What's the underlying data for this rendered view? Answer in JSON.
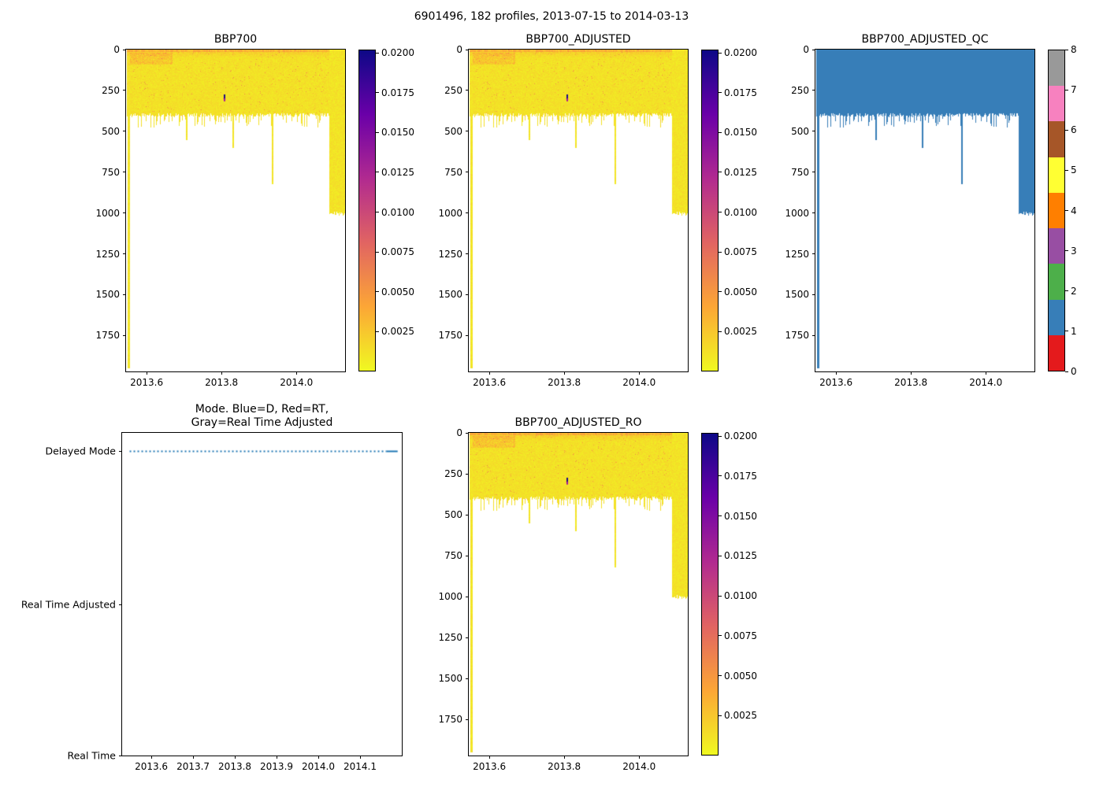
{
  "figure": {
    "suptitle": "6901496, 182 profiles, 2013-07-15 to 2014-03-13"
  },
  "palette": {
    "plasma_r_stops": [
      "#f0f921",
      "#fca636",
      "#e16462",
      "#b12a90",
      "#6a00a8",
      "#0d0887"
    ],
    "qc_category_colors": [
      "#e41a1c",
      "#377eb8",
      "#4daf4a",
      "#984ea3",
      "#ff7f00",
      "#ffff33",
      "#a65628",
      "#f781bf",
      "#999999"
    ],
    "qc_fill_color": "#377eb8",
    "mode_line_color": "#1f77b4"
  },
  "chart_data": [
    {
      "id": "bbp700",
      "type": "heatmap",
      "title": "BBP700",
      "x_tick_labels": [
        "2013.6",
        "2013.8",
        "2014.0"
      ],
      "x_tick_values": [
        2013.6,
        2013.8,
        2014.0
      ],
      "x_range": [
        2013.545,
        2014.13
      ],
      "y_tick_labels": [
        "0",
        "250",
        "500",
        "750",
        "1000",
        "1250",
        "1500",
        "1750"
      ],
      "y_tick_values": [
        0,
        250,
        500,
        750,
        1000,
        1250,
        1500,
        1750
      ],
      "y_range": [
        0,
        1970
      ],
      "y_axis": "pressure-depth, 0 at top (inverted)",
      "colormap": "plasma_r",
      "colorbar": {
        "vmin": 0,
        "vmax": 0.0202,
        "tick_values": [
          0.0025,
          0.005,
          0.0075,
          0.01,
          0.0125,
          0.015,
          0.0175,
          0.02
        ],
        "tick_labels": [
          "0.0025",
          "0.0050",
          "0.0075",
          "0.0100",
          "0.0125",
          "0.0150",
          "0.0175",
          "0.0200"
        ]
      },
      "data_summary": {
        "n_profiles": 182,
        "x_extent": [
          2013.548,
          2014.128
        ],
        "main_band": {
          "bottom_depth_min": 385,
          "bottom_depth_max": 475,
          "value_range": [
            0.0004,
            0.0022
          ]
        },
        "surface_layer": {
          "depth": 50,
          "max_value": 0.006
        },
        "deep_profiles": [
          {
            "x": 2013.55,
            "depth": 1950
          },
          {
            "x": 2013.705,
            "depth": 550
          },
          {
            "x": 2013.83,
            "depth": 600
          },
          {
            "x": 2013.935,
            "depth": 820
          }
        ],
        "deep_block": {
          "x_start": 2014.09,
          "x_end": 2014.128,
          "depth": 1000
        },
        "anomaly": {
          "x": 2013.805,
          "depth_top": 275,
          "depth_bottom": 315,
          "value": 0.018
        }
      }
    },
    {
      "id": "bbp700_adjusted",
      "type": "heatmap",
      "title": "BBP700_ADJUSTED",
      "x_tick_labels": [
        "2013.6",
        "2013.8",
        "2014.0"
      ],
      "x_tick_values": [
        2013.6,
        2013.8,
        2014.0
      ],
      "x_range": [
        2013.545,
        2014.13
      ],
      "y_tick_labels": [
        "0",
        "250",
        "500",
        "750",
        "1000",
        "1250",
        "1500",
        "1750"
      ],
      "y_tick_values": [
        0,
        250,
        500,
        750,
        1000,
        1250,
        1500,
        1750
      ],
      "y_range": [
        0,
        1970
      ],
      "y_axis": "pressure-depth, 0 at top (inverted)",
      "colormap": "plasma_r",
      "colorbar": {
        "vmin": 0,
        "vmax": 0.0202,
        "tick_values": [
          0.0025,
          0.005,
          0.0075,
          0.01,
          0.0125,
          0.015,
          0.0175,
          0.02
        ],
        "tick_labels": [
          "0.0025",
          "0.0050",
          "0.0075",
          "0.0100",
          "0.0125",
          "0.0150",
          "0.0175",
          "0.0200"
        ]
      },
      "data_summary": {
        "n_profiles": 182,
        "x_extent": [
          2013.548,
          2014.128
        ],
        "main_band": {
          "bottom_depth_min": 385,
          "bottom_depth_max": 475,
          "value_range": [
            0.0004,
            0.0022
          ]
        },
        "surface_layer": {
          "depth": 50,
          "max_value": 0.006
        },
        "deep_profiles": [
          {
            "x": 2013.55,
            "depth": 1950
          },
          {
            "x": 2013.705,
            "depth": 550
          },
          {
            "x": 2013.83,
            "depth": 600
          },
          {
            "x": 2013.935,
            "depth": 820
          }
        ],
        "deep_block": {
          "x_start": 2014.09,
          "x_end": 2014.128,
          "depth": 1000
        },
        "anomaly": {
          "x": 2013.805,
          "depth_top": 275,
          "depth_bottom": 315,
          "value": 0.018
        }
      }
    },
    {
      "id": "bbp700_adjusted_qc",
      "type": "heatmap",
      "title": "BBP700_ADJUSTED_QC",
      "x_tick_labels": [
        "2013.6",
        "2013.8",
        "2014.0"
      ],
      "x_tick_values": [
        2013.6,
        2013.8,
        2014.0
      ],
      "x_range": [
        2013.545,
        2014.13
      ],
      "y_tick_labels": [
        "0",
        "250",
        "500",
        "750",
        "1000",
        "1250",
        "1500",
        "1750"
      ],
      "y_tick_values": [
        0,
        250,
        500,
        750,
        1000,
        1250,
        1500,
        1750
      ],
      "y_range": [
        0,
        1970
      ],
      "y_axis": "pressure-depth, 0 at top (inverted)",
      "colormap": "discrete QC flags (Set1)",
      "colorbar": {
        "type": "discrete",
        "n_categories": 9,
        "tick_values": [
          0,
          1,
          2,
          3,
          4,
          5,
          6,
          7,
          8
        ],
        "tick_labels": [
          "0",
          "1",
          "2",
          "3",
          "4",
          "5",
          "6",
          "7",
          "8"
        ]
      },
      "data_summary": {
        "n_profiles": 182,
        "qc_value": 1,
        "x_extent": [
          2013.548,
          2014.128
        ],
        "main_band": {
          "bottom_depth_min": 385,
          "bottom_depth_max": 475
        },
        "deep_profiles": [
          {
            "x": 2013.55,
            "depth": 1950
          },
          {
            "x": 2013.705,
            "depth": 550
          },
          {
            "x": 2013.83,
            "depth": 600
          },
          {
            "x": 2013.935,
            "depth": 820
          }
        ],
        "deep_block": {
          "x_start": 2014.09,
          "x_end": 2014.128,
          "depth": 1000
        }
      }
    },
    {
      "id": "mode",
      "type": "line",
      "title_lines": [
        "Mode. Blue=D, Red=RT,",
        "Gray=Real Time Adjusted"
      ],
      "y_categories": [
        "Delayed Mode",
        "Real Time Adjusted",
        "Real Time"
      ],
      "x_tick_labels": [
        "2013.6",
        "2013.7",
        "2013.8",
        "2013.9",
        "2014.0",
        "2014.1"
      ],
      "x_tick_values": [
        2013.6,
        2013.7,
        2013.8,
        2013.9,
        2014.0,
        2014.1
      ],
      "x_range": [
        2013.53,
        2014.2
      ],
      "series": [
        {
          "name": "mode",
          "category": "Delayed Mode",
          "x_extent": [
            2013.548,
            2014.19
          ],
          "style": "dashed",
          "color": "#1f77b4"
        }
      ]
    },
    {
      "id": "bbp700_adjusted_ro",
      "type": "heatmap",
      "title": "BBP700_ADJUSTED_RO",
      "x_tick_labels": [
        "2013.6",
        "2013.8",
        "2014.0"
      ],
      "x_tick_values": [
        2013.6,
        2013.8,
        2014.0
      ],
      "x_range": [
        2013.545,
        2014.13
      ],
      "y_tick_labels": [
        "0",
        "250",
        "500",
        "750",
        "1000",
        "1250",
        "1500",
        "1750"
      ],
      "y_tick_values": [
        0,
        250,
        500,
        750,
        1000,
        1250,
        1500,
        1750
      ],
      "y_range": [
        0,
        1970
      ],
      "y_axis": "pressure-depth, 0 at top (inverted)",
      "colormap": "plasma_r",
      "colorbar": {
        "vmin": 0,
        "vmax": 0.0202,
        "tick_values": [
          0.0025,
          0.005,
          0.0075,
          0.01,
          0.0125,
          0.015,
          0.0175,
          0.02
        ],
        "tick_labels": [
          "0.0025",
          "0.0050",
          "0.0075",
          "0.0100",
          "0.0125",
          "0.0150",
          "0.0175",
          "0.0200"
        ]
      },
      "data_summary": {
        "n_profiles": 182,
        "x_extent": [
          2013.548,
          2014.128
        ],
        "main_band": {
          "bottom_depth_min": 385,
          "bottom_depth_max": 475,
          "value_range": [
            0.0004,
            0.0022
          ]
        },
        "surface_layer": {
          "depth": 50,
          "max_value": 0.006
        },
        "deep_profiles": [
          {
            "x": 2013.55,
            "depth": 1950
          },
          {
            "x": 2013.705,
            "depth": 550
          },
          {
            "x": 2013.83,
            "depth": 600
          },
          {
            "x": 2013.935,
            "depth": 820
          }
        ],
        "deep_block": {
          "x_start": 2014.09,
          "x_end": 2014.128,
          "depth": 1000
        },
        "anomaly": {
          "x": 2013.805,
          "depth_top": 275,
          "depth_bottom": 315,
          "value": 0.018
        }
      }
    }
  ]
}
